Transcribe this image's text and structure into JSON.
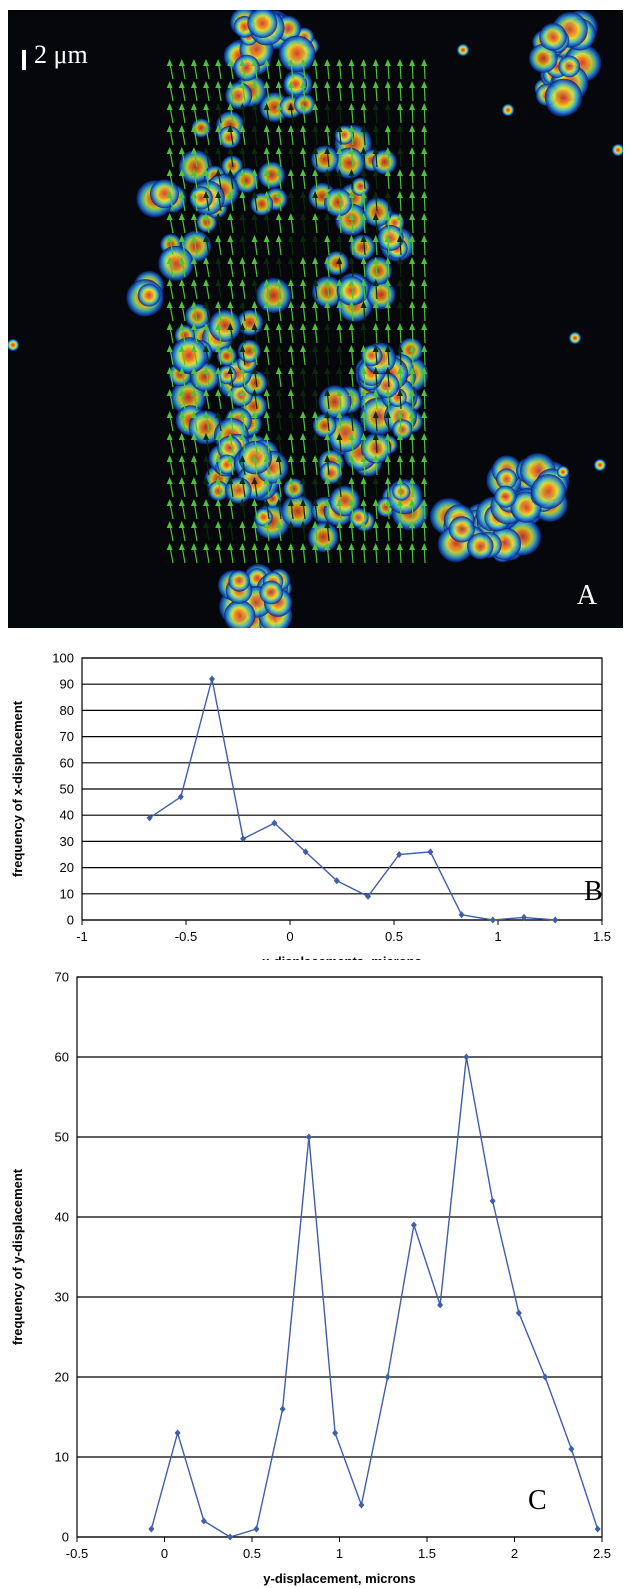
{
  "panel_a": {
    "scale_label": "2 μm",
    "letter": "A"
  },
  "chart_data": [
    {
      "type": "line",
      "letter": "B",
      "xlabel": "x-displacements, microns",
      "ylabel": "frequency of x-displacement",
      "xlim": [
        -1,
        1.5
      ],
      "ylim": [
        0,
        100
      ],
      "xticks": [
        "-1",
        "-0.5",
        "0",
        "0.5",
        "1",
        "1.5"
      ],
      "yticks": [
        "0",
        "10",
        "20",
        "30",
        "40",
        "50",
        "60",
        "70",
        "80",
        "90",
        "100"
      ],
      "grid": "horizontal",
      "color": "#3f5ea8",
      "x": [
        -0.675,
        -0.525,
        -0.375,
        -0.225,
        -0.075,
        0.075,
        0.225,
        0.375,
        0.525,
        0.675,
        0.825,
        0.975,
        1.125,
        1.275
      ],
      "y": [
        39,
        47,
        92,
        31,
        37,
        26,
        15,
        9,
        25,
        26,
        2,
        0,
        1,
        0
      ]
    },
    {
      "type": "line",
      "letter": "C",
      "xlabel": "y-displacement, microns",
      "ylabel": "frequency of y-displacement",
      "xlim": [
        -0.5,
        2.5
      ],
      "ylim": [
        0,
        70
      ],
      "xticks": [
        "-0.5",
        "0",
        "0.5",
        "1",
        "1.5",
        "2",
        "2.5"
      ],
      "yticks": [
        "0",
        "10",
        "20",
        "30",
        "40",
        "50",
        "60",
        "70"
      ],
      "grid": "horizontal",
      "color": "#3f5ea8",
      "x": [
        -0.075,
        0.075,
        0.225,
        0.375,
        0.525,
        0.675,
        0.825,
        0.975,
        1.125,
        1.275,
        1.425,
        1.575,
        1.725,
        1.875,
        2.025,
        2.175,
        2.325,
        2.475
      ],
      "y": [
        1,
        13,
        2,
        0,
        1,
        16,
        50,
        13,
        4,
        20,
        39,
        29,
        60,
        42,
        28,
        20,
        11,
        1
      ]
    }
  ]
}
